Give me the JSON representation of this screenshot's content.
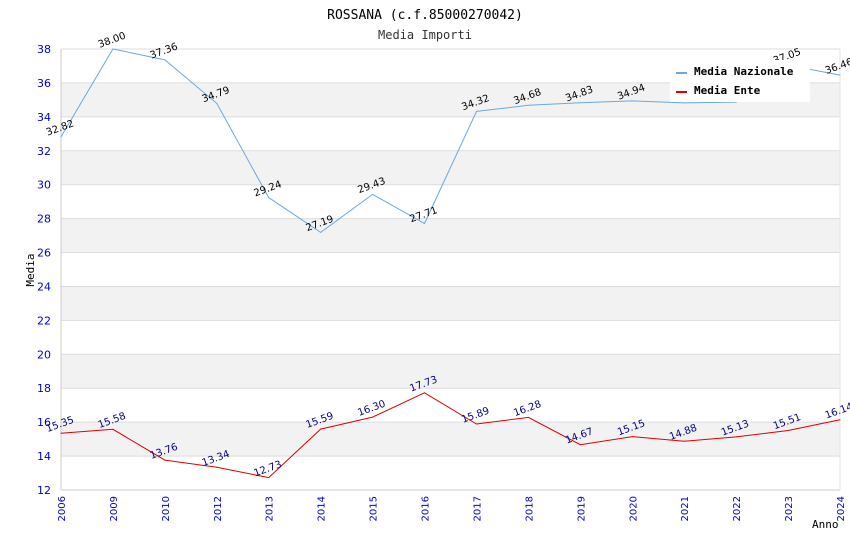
{
  "chart_data": {
    "type": "line",
    "title": "ROSSANA (c.f.85000270042)",
    "subtitle": "Media Importi",
    "xlabel": "Anno",
    "ylabel": "Media",
    "ylim": [
      12,
      38
    ],
    "yticks": [
      12,
      14,
      16,
      18,
      20,
      22,
      24,
      26,
      28,
      30,
      32,
      34,
      36,
      38
    ],
    "categories": [
      "2006",
      "2009",
      "2010",
      "2012",
      "2013",
      "2014",
      "2015",
      "2016",
      "2017",
      "2018",
      "2019",
      "2020",
      "2021",
      "2022",
      "2023",
      "2024"
    ],
    "grid": "horizontal, alternating bands",
    "legend_position": "top-right",
    "series": [
      {
        "name": "Media Nazionale",
        "color": "#6aa9e0",
        "values": [
          32.82,
          38.0,
          37.36,
          34.79,
          29.24,
          27.19,
          29.43,
          27.71,
          34.32,
          34.68,
          34.83,
          34.94,
          34.82,
          34.87,
          37.05,
          36.46
        ],
        "labels": [
          "32.82",
          "38.00",
          "37.36",
          "34.79",
          "29.24",
          "27.19",
          "29.43",
          "27.71",
          "34.32",
          "34.68",
          "34.83",
          "34.94",
          "",
          "",
          "37.05",
          "36.46"
        ]
      },
      {
        "name": "Media Ente",
        "color": "#e00000",
        "values": [
          15.35,
          15.58,
          13.76,
          13.34,
          12.73,
          15.59,
          16.3,
          17.73,
          15.89,
          16.28,
          14.67,
          15.15,
          14.88,
          15.13,
          15.51,
          16.14
        ],
        "labels": [
          "15.35",
          "15.58",
          "13.76",
          "13.34",
          "12.73",
          "15.59",
          "16.30",
          "17.73",
          "15.89",
          "16.28",
          "14.67",
          "15.15",
          "14.88",
          "15.13",
          "15.51",
          "16.14"
        ]
      }
    ]
  }
}
